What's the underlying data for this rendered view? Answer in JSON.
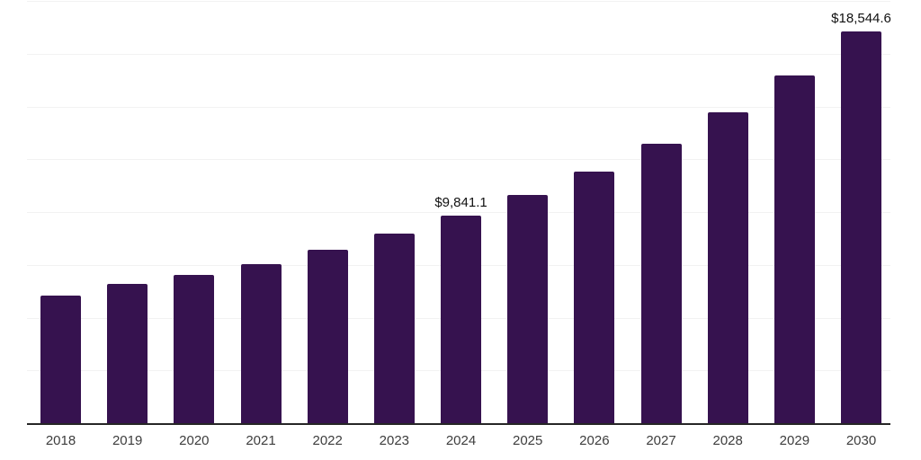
{
  "chart_data": {
    "type": "bar",
    "title": "",
    "xlabel": "",
    "ylabel": "",
    "categories": [
      "2018",
      "2019",
      "2020",
      "2021",
      "2022",
      "2023",
      "2024",
      "2025",
      "2026",
      "2027",
      "2028",
      "2029",
      "2030"
    ],
    "values": [
      6040,
      6590,
      7020,
      7540,
      8210,
      9000,
      9841.1,
      10820,
      11930,
      13240,
      14730,
      16450,
      18544.6
    ],
    "data_labels": {
      "2024": "$9,841.1",
      "2030": "$18,544.6"
    },
    "ylim": [
      0,
      20000
    ],
    "gridline_step": 2500,
    "grid": "horizontal",
    "legend": "none",
    "colors": {
      "bar": "#36124F",
      "axis_line": "#262626",
      "gridline": "#F2F2F2",
      "tick_label": "#3D3D3D",
      "data_label": "#111111",
      "background": "#FFFFFF"
    }
  }
}
